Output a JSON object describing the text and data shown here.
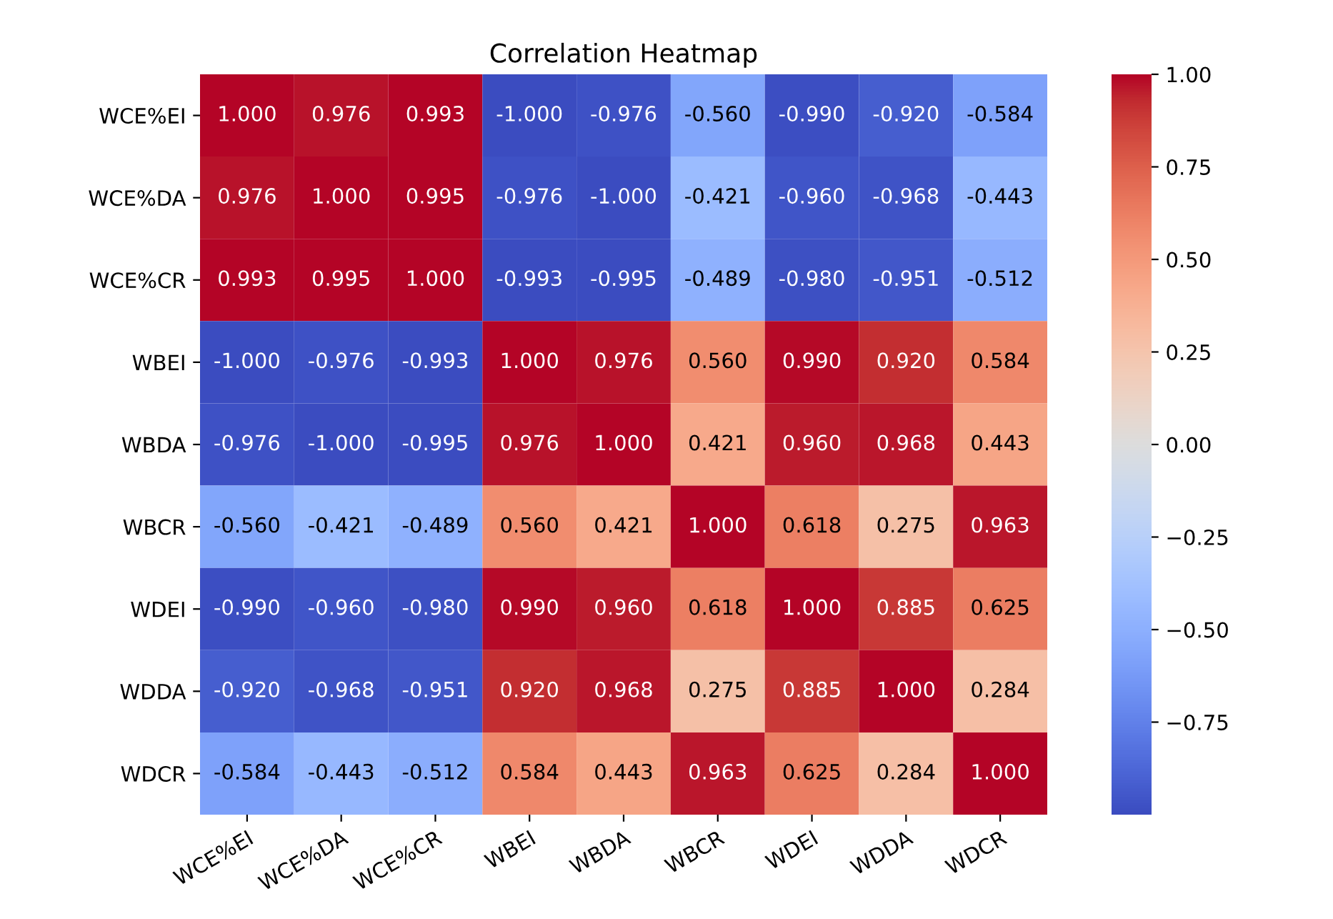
{
  "chart_data": {
    "type": "heatmap",
    "title": "Correlation Heatmap",
    "categories": [
      "WCE%EI",
      "WCE%DA",
      "WCE%CR",
      "WBEI",
      "WBDA",
      "WBCR",
      "WDEI",
      "WDDA",
      "WDCR"
    ],
    "y_categories": [
      "WCE%EI",
      "WCE%DA",
      "WCE%CR",
      "WBEI",
      "WBDA",
      "WBCR",
      "WDEI",
      "WDDA",
      "WDCR"
    ],
    "cells": [
      [
        1.0,
        0.976,
        0.993,
        -1.0,
        -0.976,
        -0.56,
        -0.99,
        -0.92,
        -0.584
      ],
      [
        0.976,
        1.0,
        0.995,
        -0.976,
        -1.0,
        -0.421,
        -0.96,
        -0.968,
        -0.443
      ],
      [
        0.993,
        0.995,
        1.0,
        -0.993,
        -0.995,
        -0.489,
        -0.98,
        -0.951,
        -0.512
      ],
      [
        -1.0,
        -0.976,
        -0.993,
        1.0,
        0.976,
        0.56,
        0.99,
        0.92,
        0.584
      ],
      [
        -0.976,
        -1.0,
        -0.995,
        0.976,
        1.0,
        0.421,
        0.96,
        0.968,
        0.443
      ],
      [
        -0.56,
        -0.421,
        -0.489,
        0.56,
        0.421,
        1.0,
        0.618,
        0.275,
        0.963
      ],
      [
        -0.99,
        -0.96,
        -0.98,
        0.99,
        0.96,
        0.618,
        1.0,
        0.885,
        0.625
      ],
      [
        -0.92,
        -0.968,
        -0.951,
        0.92,
        0.968,
        0.275,
        0.885,
        1.0,
        0.284
      ],
      [
        -0.584,
        -0.443,
        -0.512,
        0.584,
        0.443,
        0.963,
        0.625,
        0.284,
        1.0
      ]
    ],
    "cell_labels": [
      [
        "1.000",
        "0.976",
        "0.993",
        "-1.000",
        "-0.976",
        "-0.560",
        "-0.990",
        "-0.920",
        "-0.584"
      ],
      [
        "0.976",
        "1.000",
        "0.995",
        "-0.976",
        "-1.000",
        "-0.421",
        "-0.960",
        "-0.968",
        "-0.443"
      ],
      [
        "0.993",
        "0.995",
        "1.000",
        "-0.993",
        "-0.995",
        "-0.489",
        "-0.980",
        "-0.951",
        "-0.512"
      ],
      [
        "-1.000",
        "-0.976",
        "-0.993",
        "1.000",
        "0.976",
        "0.560",
        "0.990",
        "0.920",
        "0.584"
      ],
      [
        "-0.976",
        "-1.000",
        "-0.995",
        "0.976",
        "1.000",
        "0.421",
        "0.960",
        "0.968",
        "0.443"
      ],
      [
        "-0.560",
        "-0.421",
        "-0.489",
        "0.560",
        "0.421",
        "1.000",
        "0.618",
        "0.275",
        "0.963"
      ],
      [
        "-0.990",
        "-0.960",
        "-0.980",
        "0.990",
        "0.960",
        "0.618",
        "1.000",
        "0.885",
        "0.625"
      ],
      [
        "-0.920",
        "-0.968",
        "-0.951",
        "0.920",
        "0.968",
        "0.275",
        "0.885",
        "1.000",
        "0.284"
      ],
      [
        "-0.584",
        "-0.443",
        "-0.512",
        "0.584",
        "0.443",
        "0.963",
        "0.625",
        "0.284",
        "1.000"
      ]
    ],
    "clim": [
      -1,
      1
    ],
    "cticks": [
      {
        "value": 1,
        "label": "1.00"
      },
      {
        "value": 0.75,
        "label": "0.75"
      },
      {
        "value": 0.5,
        "label": "0.50"
      },
      {
        "value": 0.25,
        "label": "0.25"
      },
      {
        "value": 0,
        "label": "0.00"
      },
      {
        "value": -0.25,
        "label": "−0.25"
      },
      {
        "value": -0.5,
        "label": "−0.50"
      },
      {
        "value": -0.75,
        "label": "−0.75"
      }
    ]
  }
}
